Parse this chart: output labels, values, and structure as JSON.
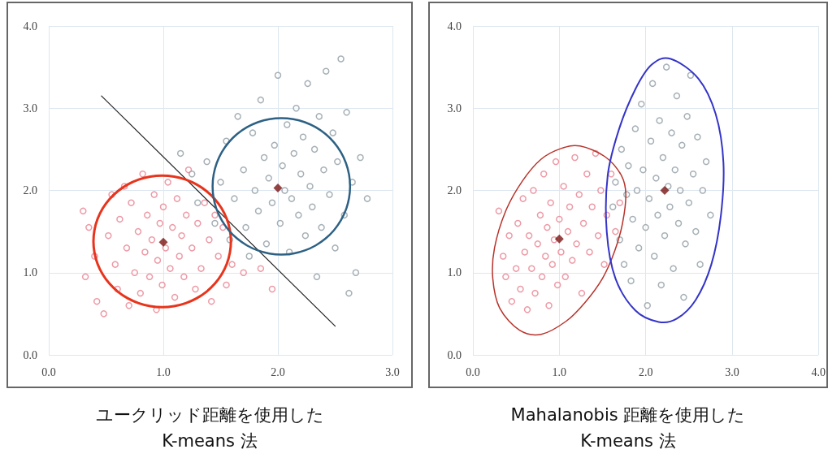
{
  "chart_data": [
    {
      "type": "scatter",
      "title": "ユークリッド距離を使用した\nK-means 法",
      "xlim": [
        0,
        3
      ],
      "ylim": [
        0,
        4
      ],
      "xticks": [
        {
          "value": 0,
          "label": "0.0"
        },
        {
          "value": 1,
          "label": "1.0"
        },
        {
          "value": 2,
          "label": "2.0"
        },
        {
          "value": 3,
          "label": "3.0"
        }
      ],
      "yticks": [
        {
          "value": 0,
          "label": "0.0"
        },
        {
          "value": 1,
          "label": "1.0"
        },
        {
          "value": 2,
          "label": "2.0"
        },
        {
          "value": 3,
          "label": "3.0"
        },
        {
          "value": 4,
          "label": "4.0"
        }
      ],
      "grid": true,
      "series": [
        {
          "marker": "circle",
          "color": "#e8808f",
          "x": [
            0.3,
            0.35,
            0.32,
            0.4,
            0.42,
            0.48,
            0.52,
            0.55,
            0.58,
            0.6,
            0.62,
            0.66,
            0.68,
            0.7,
            0.72,
            0.75,
            0.78,
            0.8,
            0.82,
            0.84,
            0.86,
            0.88,
            0.9,
            0.92,
            0.94,
            0.95,
            0.97,
            0.99,
            1.0,
            1.02,
            1.04,
            1.06,
            1.08,
            1.1,
            1.12,
            1.14,
            1.16,
            1.18,
            1.2,
            1.22,
            1.25,
            1.28,
            1.3,
            1.33,
            1.36,
            1.4,
            1.42,
            1.45,
            1.48,
            1.52,
            1.55,
            1.6,
            1.7,
            1.85,
            1.95
          ],
          "values": [
            1.75,
            1.55,
            0.95,
            1.2,
            0.65,
            0.5,
            1.45,
            1.95,
            1.1,
            0.8,
            1.65,
            2.05,
            1.3,
            0.6,
            1.85,
            1.0,
            1.5,
            0.75,
            2.2,
            1.25,
            1.7,
            0.95,
            1.4,
            1.95,
            0.55,
            1.15,
            1.6,
            0.85,
            1.8,
            1.3,
            2.1,
            1.05,
            1.55,
            0.7,
            1.9,
            1.2,
            1.45,
            0.95,
            1.7,
            2.25,
            1.3,
            0.8,
            1.6,
            1.05,
            1.85,
            1.4,
            0.65,
            1.7,
            1.2,
            1.55,
            0.85,
            1.1,
            1.0,
            1.05,
            0.8
          ]
        },
        {
          "marker": "circle",
          "color": "#8e9ba3",
          "x": [
            1.15,
            1.25,
            1.3,
            1.38,
            1.45,
            1.5,
            1.55,
            1.58,
            1.62,
            1.65,
            1.7,
            1.72,
            1.75,
            1.78,
            1.8,
            1.83,
            1.85,
            1.88,
            1.9,
            1.92,
            1.95,
            1.97,
            2.0,
            2.02,
            2.04,
            2.06,
            2.08,
            2.1,
            2.12,
            2.14,
            2.16,
            2.18,
            2.2,
            2.22,
            2.24,
            2.26,
            2.28,
            2.3,
            2.32,
            2.34,
            2.36,
            2.38,
            2.4,
            2.42,
            2.45,
            2.48,
            2.5,
            2.52,
            2.55,
            2.58,
            2.6,
            2.62,
            2.65,
            2.68,
            2.72,
            2.78
          ],
          "values": [
            2.45,
            2.2,
            1.85,
            2.35,
            1.6,
            2.1,
            2.6,
            1.4,
            1.9,
            2.9,
            2.25,
            1.55,
            1.2,
            2.7,
            2.0,
            1.75,
            3.1,
            2.4,
            1.35,
            2.15,
            1.85,
            2.55,
            3.4,
            1.6,
            2.3,
            2.0,
            2.8,
            1.25,
            1.9,
            2.45,
            3.0,
            1.7,
            2.2,
            2.65,
            1.45,
            3.3,
            2.05,
            1.8,
            2.5,
            0.95,
            2.9,
            1.55,
            2.25,
            3.45,
            1.95,
            2.7,
            1.3,
            2.35,
            3.6,
            1.7,
            2.95,
            0.75,
            2.1,
            1.0,
            2.4,
            1.9
          ]
        },
        {
          "type": "line",
          "marker": "none",
          "color": "#222222",
          "x": [
            0.46,
            2.5
          ],
          "values": [
            3.15,
            0.35
          ]
        },
        {
          "marker": "diamond",
          "color": "#7b1414",
          "x": [
            1.0,
            2.0
          ],
          "values": [
            1.37,
            2.03
          ]
        }
      ]
    },
    {
      "type": "scatter",
      "title": "Mahalanobis 距離を使用した\nK-means 法",
      "xlim": [
        0,
        4
      ],
      "ylim": [
        0,
        4
      ],
      "xticks": [
        {
          "value": 0,
          "label": "0.0"
        },
        {
          "value": 1,
          "label": "1.0"
        },
        {
          "value": 2,
          "label": "2.0"
        },
        {
          "value": 3,
          "label": "3.0"
        },
        {
          "value": 4,
          "label": "4.0"
        }
      ],
      "yticks": [
        {
          "value": 0,
          "label": "0.0"
        },
        {
          "value": 1,
          "label": "1.0"
        },
        {
          "value": 2,
          "label": "2.0"
        },
        {
          "value": 3,
          "label": "3.0"
        },
        {
          "value": 4,
          "label": "4.0"
        }
      ],
      "grid": true,
      "series": [
        {
          "marker": "circle",
          "color": "#e8808f",
          "x": [
            0.3,
            0.35,
            0.38,
            0.42,
            0.45,
            0.5,
            0.52,
            0.55,
            0.58,
            0.6,
            0.63,
            0.65,
            0.68,
            0.7,
            0.72,
            0.75,
            0.78,
            0.8,
            0.82,
            0.84,
            0.86,
            0.88,
            0.9,
            0.92,
            0.94,
            0.96,
            0.98,
            1.0,
            1.02,
            1.05,
            1.07,
            1.1,
            1.12,
            1.15,
            1.18,
            1.2,
            1.23,
            1.26,
            1.28,
            1.32,
            1.35,
            1.38,
            1.42,
            1.45,
            1.48,
            1.52,
            1.55,
            1.6,
            1.65,
            1.7
          ],
          "values": [
            1.75,
            1.2,
            0.95,
            1.45,
            0.65,
            1.05,
            1.6,
            0.8,
            1.9,
            1.25,
            0.55,
            1.45,
            1.05,
            2.0,
            0.75,
            1.35,
            1.7,
            0.95,
            2.2,
            1.2,
            1.55,
            0.6,
            1.85,
            1.1,
            1.4,
            2.35,
            0.85,
            1.65,
            1.25,
            2.05,
            0.95,
            1.5,
            1.8,
            1.15,
            2.4,
            1.35,
            1.95,
            0.75,
            1.6,
            2.2,
            1.25,
            1.8,
            2.45,
            1.45,
            2.0,
            1.1,
            1.7,
            2.2,
            1.5,
            1.85
          ]
        },
        {
          "marker": "circle",
          "color": "#8e9ba3",
          "x": [
            1.62,
            1.65,
            1.7,
            1.72,
            1.75,
            1.78,
            1.8,
            1.83,
            1.85,
            1.88,
            1.9,
            1.92,
            1.95,
            1.97,
            2.0,
            2.02,
            2.04,
            2.06,
            2.08,
            2.1,
            2.12,
            2.14,
            2.16,
            2.18,
            2.2,
            2.22,
            2.24,
            2.26,
            2.28,
            2.3,
            2.32,
            2.34,
            2.36,
            2.38,
            2.4,
            2.42,
            2.44,
            2.46,
            2.48,
            2.5,
            2.52,
            2.55,
            2.58,
            2.6,
            2.63,
            2.66,
            2.7,
            2.75
          ],
          "values": [
            1.8,
            2.1,
            1.4,
            2.5,
            1.1,
            1.95,
            2.3,
            0.9,
            1.65,
            2.75,
            2.0,
            1.3,
            3.05,
            2.25,
            1.55,
            0.6,
            1.9,
            2.6,
            3.3,
            1.2,
            2.15,
            1.7,
            2.85,
            0.85,
            2.4,
            1.45,
            3.5,
            2.05,
            1.8,
            2.7,
            1.05,
            2.25,
            3.15,
            1.6,
            2.0,
            2.55,
            0.7,
            1.35,
            2.9,
            1.85,
            3.4,
            2.2,
            1.5,
            2.65,
            1.1,
            2.0,
            2.35,
            1.7
          ]
        },
        {
          "marker": "diamond",
          "color": "#7b1414",
          "x": [
            1.0,
            2.22
          ],
          "values": [
            1.41,
            2.0
          ]
        }
      ]
    }
  ]
}
